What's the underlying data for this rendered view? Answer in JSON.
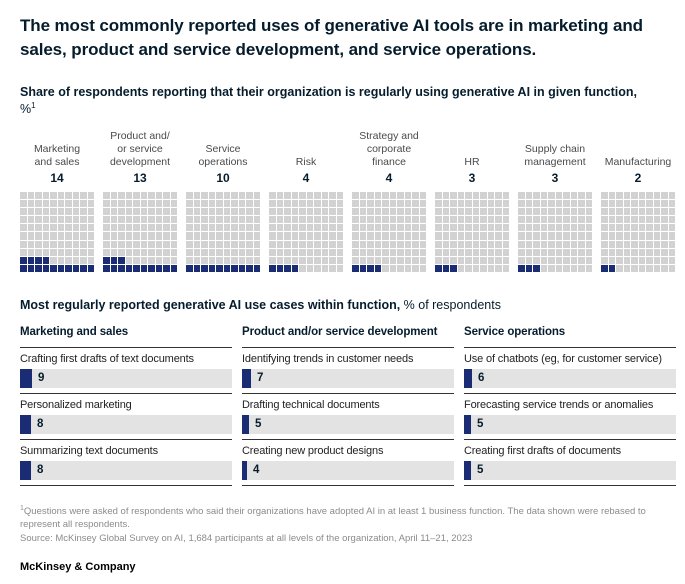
{
  "colors": {
    "navy_fill": "#1a2c73",
    "waffle_square_gray": "#d2d2d2",
    "bar_track_gray": "#e3e3e3",
    "text_dark": "#051c2c",
    "footnote_gray": "#8b8b8b"
  },
  "header": {
    "title": "The most commonly reported uses of generative AI tools are in marketing and sales, product and service development, and service operations.",
    "subtitle_bold": "Share of respondents reporting that their organization is regularly using generative AI in given function,",
    "subtitle_unit": " %",
    "subtitle_superscript": "1"
  },
  "function_chart": {
    "grid": {
      "columns": 10,
      "rows": 10,
      "square_unit_pct": 1
    },
    "functions": [
      {
        "label": "Marketing\nand sales",
        "value": 14
      },
      {
        "label": "Product and/\nor service\ndevelopment",
        "value": 13
      },
      {
        "label": "Service\noperations",
        "value": 10
      },
      {
        "label": "Risk",
        "value": 4
      },
      {
        "label": "Strategy and\ncorporate\nfinance",
        "value": 4
      },
      {
        "label": "HR",
        "value": 3
      },
      {
        "label": "Supply chain\nmanagement",
        "value": 3
      },
      {
        "label": "Manufacturing",
        "value": 2
      }
    ]
  },
  "use_cases": {
    "heading_bold": "Most regularly reported generative AI use cases within function,",
    "heading_normal": " % of respondents",
    "groups": [
      {
        "name": "Marketing and sales",
        "items": [
          {
            "label": "Crafting first drafts of text documents",
            "value": 9
          },
          {
            "label": "Personalized marketing",
            "value": 8
          },
          {
            "label": "Summarizing text documents",
            "value": 8
          }
        ]
      },
      {
        "name": "Product and/or service development",
        "items": [
          {
            "label": "Identifying trends in customer needs",
            "value": 7
          },
          {
            "label": "Drafting technical documents",
            "value": 5
          },
          {
            "label": "Creating new product designs",
            "value": 4
          }
        ]
      },
      {
        "name": "Service operations",
        "items": [
          {
            "label": "Use of chatbots (eg, for customer service)",
            "value": 6
          },
          {
            "label": "Forecasting service trends or anomalies",
            "value": 5
          },
          {
            "label": "Creating first drafts of documents",
            "value": 5
          }
        ]
      }
    ]
  },
  "footnotes": {
    "superscript": "1",
    "note": "Questions were asked of respondents who said their organizations have adopted AI in at least 1 business function. The data shown were rebased to represent all respondents.",
    "source": "Source: McKinsey Global Survey on AI, 1,684 participants at all levels of the organization, April 11–21, 2023"
  },
  "brand": "McKinsey & Company",
  "chart_data": [
    {
      "type": "bar",
      "variant": "waffle (10x10 grid per category, 1 square = 1%)",
      "title": "Share of respondents reporting that their organization is regularly using generative AI in given function, %",
      "categories": [
        "Marketing and sales",
        "Product and/or service development",
        "Service operations",
        "Risk",
        "Strategy and corporate finance",
        "HR",
        "Supply chain management",
        "Manufacturing"
      ],
      "values": [
        14,
        13,
        10,
        4,
        4,
        3,
        3,
        2
      ],
      "ylim": [
        0,
        100
      ],
      "unit": "% of respondents",
      "legend_position": "none",
      "grid": "waffle squares, filled from bottom-left"
    },
    {
      "type": "bar",
      "variant": "horizontal mini-bars in 3 grouped columns with gray 100% tracks",
      "title": "Most regularly reported generative AI use cases within function, % of respondents",
      "series": [
        {
          "name": "Marketing and sales",
          "categories": [
            "Crafting first drafts of text documents",
            "Personalized marketing",
            "Summarizing text documents"
          ],
          "values": [
            9,
            8,
            8
          ]
        },
        {
          "name": "Product and/or service development",
          "categories": [
            "Identifying trends in customer needs",
            "Drafting technical documents",
            "Creating new product designs"
          ],
          "values": [
            7,
            5,
            4
          ]
        },
        {
          "name": "Service operations",
          "categories": [
            "Use of chatbots (eg, for customer service)",
            "Forecasting service trends or anomalies",
            "Creating first drafts of documents"
          ],
          "values": [
            6,
            5,
            5
          ]
        }
      ],
      "unit": "% of respondents",
      "legend_position": "none"
    }
  ]
}
